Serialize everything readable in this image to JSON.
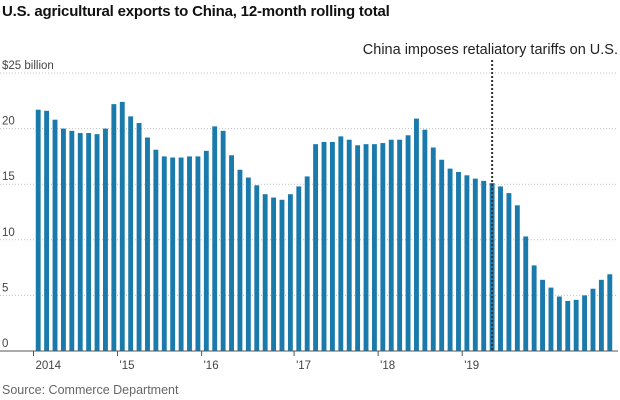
{
  "title": "U.S. agricultural exports to China, 12-month rolling total",
  "source": "Source: Commerce Department",
  "colors": {
    "bar": "#1a7aac",
    "grid": "#bfbfbf",
    "axis": "#555555",
    "marker": "#333333"
  },
  "chart_data": {
    "type": "bar",
    "title": "U.S. agricultural exports to China, 12-month rolling total",
    "ylabel": "",
    "xlabel": "",
    "ylim": [
      0,
      25
    ],
    "yticks": [
      0,
      5,
      10,
      15,
      20,
      25
    ],
    "ytick_labels": [
      "0",
      "5",
      "10",
      "15",
      "20",
      "$25 billion"
    ],
    "x_start_index": 0,
    "xtick_labels": [
      {
        "label": "2014",
        "bar_index": 0
      },
      {
        "label": "'15",
        "bar_index": 10
      },
      {
        "label": "'16",
        "bar_index": 20
      },
      {
        "label": "'17",
        "bar_index": 31
      },
      {
        "label": "'18",
        "bar_index": 41
      },
      {
        "label": "'19",
        "bar_index": 51
      }
    ],
    "values": [
      21.7,
      21.6,
      20.8,
      20.0,
      19.8,
      19.6,
      19.6,
      19.5,
      20.0,
      22.2,
      22.4,
      21.1,
      20.5,
      19.2,
      18.1,
      17.5,
      17.4,
      17.4,
      17.5,
      17.5,
      18.0,
      20.2,
      19.8,
      17.6,
      16.3,
      15.6,
      14.9,
      14.1,
      13.8,
      13.6,
      14.1,
      14.8,
      15.7,
      18.6,
      18.8,
      18.8,
      19.3,
      19.0,
      18.5,
      18.6,
      18.6,
      18.7,
      19.0,
      19.0,
      19.4,
      20.9,
      19.9,
      18.3,
      17.2,
      16.4,
      16.1,
      15.8,
      15.5,
      15.3,
      15.1,
      14.8,
      14.2,
      13.1,
      10.3,
      7.7,
      6.4,
      5.7,
      4.9,
      4.5,
      4.6,
      5.0,
      5.6,
      6.4,
      6.9
    ],
    "annotations": [
      {
        "text": "China imposes retaliatory tariffs on U.S.",
        "at_bar_index": 54.5,
        "style": "dotted-vertical-line"
      }
    ]
  }
}
